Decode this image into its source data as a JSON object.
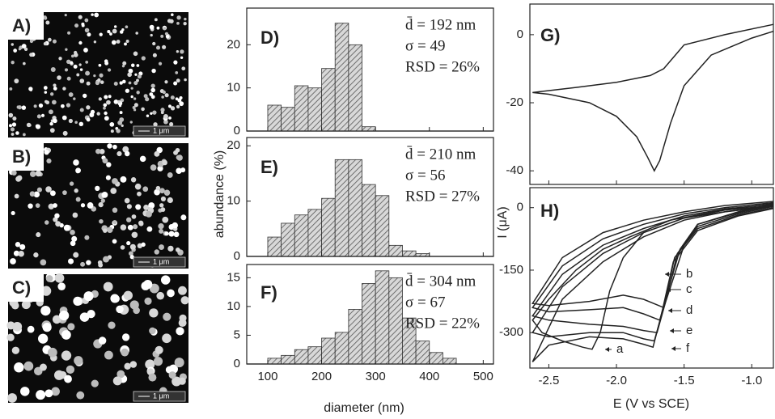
{
  "images": [
    {
      "label": "A)",
      "scale_bar": "1 μm"
    },
    {
      "label": "B)",
      "scale_bar": "1 μm"
    },
    {
      "label": "C)",
      "scale_bar": "1 μm"
    }
  ],
  "chart_data": [
    {
      "type": "histogram",
      "label": "D)",
      "bins": [
        100,
        125,
        150,
        175,
        200,
        225,
        250,
        275,
        300
      ],
      "values": [
        6,
        5.5,
        10.5,
        10,
        14.5,
        25,
        20,
        1
      ],
      "xlim": [
        61,
        519
      ],
      "xticks": [
        100,
        200,
        300,
        400,
        500
      ],
      "ylim": [
        0,
        28.5
      ],
      "yticks": [
        0,
        10,
        20
      ],
      "annotations": [
        "d̄ = 192 nm",
        "σ = 49",
        "RSD = 26%"
      ]
    },
    {
      "type": "histogram",
      "label": "E)",
      "bins": [
        100,
        125,
        150,
        175,
        200,
        225,
        250,
        275,
        300,
        325,
        350,
        375,
        400
      ],
      "values": [
        3.5,
        6,
        7.5,
        8.5,
        10.5,
        17.5,
        17.5,
        13,
        11,
        2,
        1,
        0.5
      ],
      "xlim": [
        61,
        519
      ],
      "xticks": [
        100,
        200,
        300,
        400,
        500
      ],
      "ylim": [
        0,
        21.5
      ],
      "yticks": [
        0,
        10,
        20
      ],
      "annotations": [
        "d̄ = 210 nm",
        "σ = 56",
        "RSD = 27%"
      ],
      "y_label": "abundance (%)"
    },
    {
      "type": "histogram",
      "label": "F)",
      "bins": [
        100,
        125,
        150,
        175,
        200,
        225,
        250,
        275,
        300,
        325,
        350,
        375,
        400,
        425,
        450
      ],
      "values": [
        1,
        1.5,
        2.5,
        3,
        4.5,
        5.5,
        9.5,
        14,
        16.2,
        15,
        8,
        4,
        2,
        1
      ],
      "xlim": [
        61,
        519
      ],
      "xticks": [
        100,
        200,
        300,
        400,
        500
      ],
      "ylim": [
        0,
        17.3
      ],
      "yticks": [
        0,
        5,
        10,
        15
      ],
      "annotations": [
        "d̄ = 304 nm",
        "σ = 67",
        "RSD = 22%"
      ],
      "x_label": "diameter (nm)"
    },
    {
      "type": "line",
      "label": "G)",
      "xlim": [
        -2.64,
        -0.84
      ],
      "xticks": [
        -2.5,
        -2,
        -1.5,
        -1
      ],
      "ylim": [
        -44,
        9
      ],
      "yticks": [
        -40,
        -20,
        0
      ],
      "series": [
        {
          "color": "#222222",
          "x": [
            -0.84,
            -1.2,
            -1.5,
            -1.65,
            -1.75,
            -2.0,
            -2.3,
            -2.62,
            -2.5,
            -2.2,
            -2.0,
            -1.85,
            -1.77,
            -1.72,
            -1.68,
            -1.6,
            -1.5,
            -1.3,
            -1.0,
            -0.84
          ],
          "values": [
            3,
            0,
            -3,
            -10,
            -12,
            -14,
            -15.5,
            -17,
            -17.5,
            -20,
            -24,
            -30,
            -36,
            -40,
            -37,
            -26,
            -15,
            -6,
            -1,
            1
          ]
        }
      ]
    },
    {
      "type": "line",
      "label": "H)",
      "xlim": [
        -2.64,
        -0.84
      ],
      "xticks": [
        -2.5,
        {
          "value": -2,
          "label": "-2.0"
        },
        -1.5,
        {
          "value": -1,
          "label": "-1.0"
        }
      ],
      "ylim": [
        -385,
        48
      ],
      "yticks": [
        -300,
        -150,
        0
      ],
      "x_label": "E (V vs SCE)",
      "y_label": "I (μA)",
      "series": [
        {
          "name": "a",
          "color": "#222222",
          "x": [
            -0.84,
            -1.2,
            -1.6,
            -1.9,
            -2.1,
            -2.3,
            -2.5,
            -2.62,
            -2.55,
            -2.4,
            -2.25,
            -2.18,
            -2.12,
            -2.05,
            -1.95,
            -1.8,
            -1.5,
            -1.2,
            -0.84
          ],
          "values": [
            10,
            -5,
            -30,
            -70,
            -100,
            -150,
            -220,
            -270,
            -300,
            -320,
            -335,
            -340,
            -300,
            -200,
            -120,
            -60,
            -25,
            -10,
            5
          ]
        },
        {
          "name": "b",
          "color": "#222222",
          "x": [
            -0.84,
            -1.2,
            -1.5,
            -1.8,
            -2.1,
            -2.4,
            -2.62,
            -2.5,
            -2.2,
            -1.95,
            -1.8,
            -1.65,
            -1.59,
            -1.5,
            -1.4,
            -1.1,
            -0.84
          ],
          "values": [
            15,
            5,
            -10,
            -30,
            -60,
            -120,
            -230,
            -235,
            -225,
            -210,
            -220,
            -240,
            -180,
            -90,
            -40,
            -10,
            8
          ]
        },
        {
          "name": "c",
          "color": "#222222",
          "x": [
            -0.84,
            -1.2,
            -1.5,
            -1.8,
            -2.1,
            -2.4,
            -2.62,
            -2.5,
            -2.2,
            -1.95,
            -1.8,
            -1.68,
            -1.62,
            -1.53,
            -1.4,
            -1.1,
            -0.84
          ],
          "values": [
            12,
            0,
            -15,
            -40,
            -75,
            -140,
            -240,
            -250,
            -245,
            -240,
            -255,
            -270,
            -200,
            -100,
            -40,
            -12,
            5
          ]
        },
        {
          "name": "d",
          "color": "#222222",
          "x": [
            -0.84,
            -1.2,
            -1.5,
            -1.8,
            -2.1,
            -2.4,
            -2.62,
            -2.5,
            -2.2,
            -1.95,
            -1.8,
            -1.7,
            -1.64,
            -1.55,
            -1.4,
            -1.1,
            -0.84
          ],
          "values": [
            8,
            -3,
            -20,
            -50,
            -90,
            -160,
            -260,
            -270,
            -280,
            -285,
            -295,
            -300,
            -230,
            -110,
            -45,
            -15,
            3
          ]
        },
        {
          "name": "e",
          "color": "#222222",
          "x": [
            -0.84,
            -1.2,
            -1.5,
            -1.8,
            -2.1,
            -2.4,
            -2.62,
            -2.5,
            -2.2,
            -1.95,
            -1.8,
            -1.72,
            -1.66,
            -1.57,
            -1.4,
            -1.1,
            -0.84
          ],
          "values": [
            5,
            -6,
            -25,
            -60,
            -110,
            -190,
            -300,
            -310,
            -300,
            -300,
            -315,
            -320,
            -250,
            -120,
            -50,
            -18,
            0
          ]
        },
        {
          "name": "f",
          "color": "#222222",
          "x": [
            -0.84,
            -1.2,
            -1.5,
            -1.8,
            -2.1,
            -2.4,
            -2.62,
            -2.5,
            -2.2,
            -1.95,
            -1.8,
            -1.73,
            -1.67,
            -1.58,
            -1.4,
            -1.1,
            -0.84
          ],
          "values": [
            3,
            -10,
            -30,
            -70,
            -130,
            -220,
            -370,
            -330,
            -310,
            -315,
            -328,
            -335,
            -260,
            -130,
            -55,
            -20,
            -2
          ]
        }
      ]
    }
  ]
}
